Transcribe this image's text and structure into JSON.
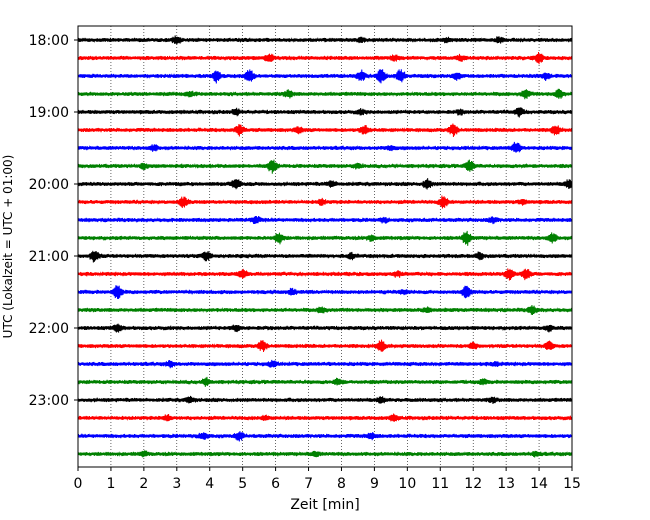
{
  "chart_data": {
    "type": "line",
    "title": "",
    "xlabel": "Zeit  [min]",
    "ylabel": "UTC (Lokalzeit = UTC + 01:00)",
    "xlim": [
      0,
      15
    ],
    "x_ticks": [
      0,
      1,
      2,
      3,
      4,
      5,
      6,
      7,
      8,
      9,
      10,
      11,
      12,
      13,
      14,
      15
    ],
    "y_tick_labels": [
      "18:00",
      "19:00",
      "20:00",
      "21:00",
      "22:00",
      "23:00"
    ],
    "y_tick_rows": [
      0,
      4,
      8,
      12,
      16,
      20
    ],
    "vertical_grid": true,
    "grid_style": "dotted",
    "trace_colors": [
      "#000000",
      "#ff0000",
      "#0000ff",
      "#008000"
    ],
    "traces": [
      {
        "start": "18:00",
        "color": "#000000",
        "bursts": [
          [
            3.0,
            0.6
          ],
          [
            12.8,
            0.4
          ],
          [
            8.6,
            0.3
          ],
          [
            11.2,
            0.3
          ]
        ]
      },
      {
        "start": "18:15",
        "color": "#ff0000",
        "bursts": [
          [
            5.8,
            0.6
          ],
          [
            14.0,
            0.7
          ],
          [
            9.6,
            0.4
          ],
          [
            11.6,
            0.4
          ]
        ]
      },
      {
        "start": "18:30",
        "color": "#0000ff",
        "bursts": [
          [
            4.2,
            0.9
          ],
          [
            5.2,
            1.0
          ],
          [
            8.6,
            0.8
          ],
          [
            9.2,
            1.0
          ],
          [
            9.8,
            0.9
          ],
          [
            11.5,
            0.5
          ],
          [
            14.2,
            0.5
          ]
        ]
      },
      {
        "start": "18:45",
        "color": "#008000",
        "bursts": [
          [
            6.4,
            0.5
          ],
          [
            13.6,
            0.6
          ],
          [
            14.6,
            0.7
          ],
          [
            3.4,
            0.3
          ]
        ]
      },
      {
        "start": "19:00",
        "color": "#000000",
        "bursts": [
          [
            13.4,
            0.6
          ],
          [
            8.6,
            0.3
          ],
          [
            4.8,
            0.4
          ],
          [
            11.6,
            0.3
          ]
        ]
      },
      {
        "start": "19:15",
        "color": "#ff0000",
        "bursts": [
          [
            4.9,
            0.8
          ],
          [
            8.7,
            0.7
          ],
          [
            11.4,
            0.8
          ],
          [
            14.5,
            0.7
          ],
          [
            6.7,
            0.4
          ]
        ]
      },
      {
        "start": "19:30",
        "color": "#0000ff",
        "bursts": [
          [
            13.3,
            0.8
          ],
          [
            2.3,
            0.4
          ],
          [
            9.5,
            0.3
          ]
        ]
      },
      {
        "start": "19:45",
        "color": "#008000",
        "bursts": [
          [
            5.9,
            1.0
          ],
          [
            11.9,
            0.8
          ],
          [
            2.0,
            0.4
          ],
          [
            8.5,
            0.3
          ]
        ]
      },
      {
        "start": "20:00",
        "color": "#000000",
        "bursts": [
          [
            4.8,
            0.8
          ],
          [
            10.6,
            0.7
          ],
          [
            14.9,
            0.6
          ],
          [
            7.7,
            0.4
          ]
        ]
      },
      {
        "start": "20:15",
        "color": "#ff0000",
        "bursts": [
          [
            3.2,
            0.7
          ],
          [
            11.1,
            0.9
          ],
          [
            7.4,
            0.4
          ],
          [
            13.5,
            0.3
          ]
        ]
      },
      {
        "start": "20:30",
        "color": "#0000ff",
        "bursts": [
          [
            5.4,
            0.5
          ],
          [
            12.6,
            0.4
          ],
          [
            9.3,
            0.3
          ]
        ]
      },
      {
        "start": "20:45",
        "color": "#008000",
        "bursts": [
          [
            6.1,
            0.8
          ],
          [
            11.8,
            1.0
          ],
          [
            14.4,
            0.7
          ],
          [
            8.9,
            0.4
          ]
        ]
      },
      {
        "start": "21:00",
        "color": "#000000",
        "bursts": [
          [
            0.5,
            0.8
          ],
          [
            3.9,
            0.7
          ],
          [
            8.3,
            0.4
          ],
          [
            12.2,
            0.5
          ]
        ]
      },
      {
        "start": "21:15",
        "color": "#ff0000",
        "bursts": [
          [
            5.0,
            0.6
          ],
          [
            13.1,
            0.9
          ],
          [
            13.6,
            0.8
          ],
          [
            9.7,
            0.4
          ]
        ]
      },
      {
        "start": "21:30",
        "color": "#0000ff",
        "bursts": [
          [
            1.2,
            1.0
          ],
          [
            11.8,
            0.9
          ],
          [
            6.5,
            0.4
          ],
          [
            9.9,
            0.3
          ]
        ]
      },
      {
        "start": "21:45",
        "color": "#008000",
        "bursts": [
          [
            7.4,
            0.4
          ],
          [
            13.8,
            0.6
          ],
          [
            10.6,
            0.3
          ]
        ]
      },
      {
        "start": "22:00",
        "color": "#000000",
        "bursts": [
          [
            1.2,
            0.5
          ],
          [
            4.8,
            0.4
          ],
          [
            14.3,
            0.4
          ]
        ]
      },
      {
        "start": "22:15",
        "color": "#ff0000",
        "bursts": [
          [
            5.6,
            0.7
          ],
          [
            9.2,
            0.8
          ],
          [
            14.3,
            0.6
          ],
          [
            12.0,
            0.4
          ]
        ]
      },
      {
        "start": "22:30",
        "color": "#0000ff",
        "bursts": [
          [
            2.8,
            0.4
          ],
          [
            5.9,
            0.4
          ],
          [
            12.7,
            0.3
          ]
        ]
      },
      {
        "start": "22:45",
        "color": "#008000",
        "bursts": [
          [
            3.9,
            0.5
          ],
          [
            7.9,
            0.4
          ],
          [
            12.3,
            0.3
          ]
        ]
      },
      {
        "start": "23:00",
        "color": "#000000",
        "bursts": [
          [
            3.4,
            0.4
          ],
          [
            9.2,
            0.4
          ],
          [
            12.6,
            0.3
          ]
        ]
      },
      {
        "start": "23:15",
        "color": "#ff0000",
        "bursts": [
          [
            2.7,
            0.4
          ],
          [
            5.7,
            0.3
          ],
          [
            9.6,
            0.4
          ]
        ]
      },
      {
        "start": "23:30",
        "color": "#0000ff",
        "bursts": [
          [
            3.8,
            0.5
          ],
          [
            4.9,
            0.6
          ],
          [
            8.9,
            0.4
          ]
        ]
      },
      {
        "start": "23:45",
        "color": "#008000",
        "bursts": [
          [
            2.0,
            0.3
          ],
          [
            7.2,
            0.3
          ],
          [
            13.9,
            0.3
          ]
        ]
      }
    ]
  }
}
